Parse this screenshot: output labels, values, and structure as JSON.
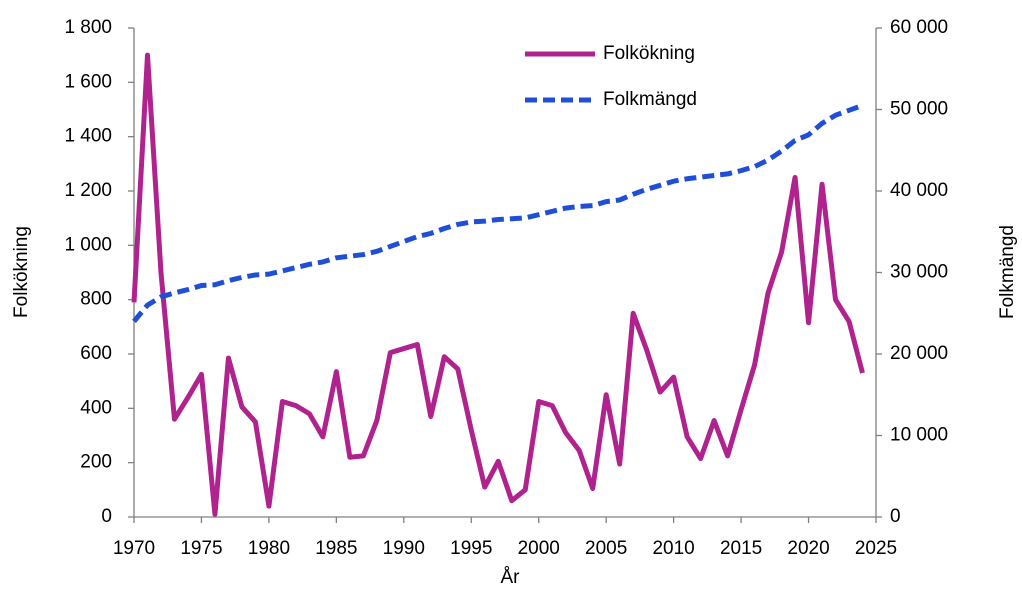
{
  "chart_data": {
    "type": "line",
    "x_label": "År",
    "y_label": "Folkökning",
    "y2_label": "Folkmängd",
    "x": [
      1970,
      1971,
      1972,
      1973,
      1974,
      1975,
      1976,
      1977,
      1978,
      1979,
      1980,
      1981,
      1982,
      1983,
      1984,
      1985,
      1986,
      1987,
      1988,
      1989,
      1990,
      1991,
      1992,
      1993,
      1994,
      1995,
      1996,
      1997,
      1998,
      1999,
      2000,
      2001,
      2002,
      2003,
      2004,
      2005,
      2006,
      2007,
      2008,
      2009,
      2010,
      2011,
      2012,
      2013,
      2014,
      2015,
      2016,
      2017,
      2018,
      2019,
      2020,
      2021,
      2022,
      2023,
      2024
    ],
    "series": [
      {
        "name": "Folkökning",
        "color": "#b0238f",
        "dash": "solid",
        "axis": "y",
        "values": [
          790,
          1700,
          900,
          360,
          440,
          525,
          10,
          585,
          405,
          350,
          40,
          425,
          410,
          380,
          295,
          535,
          220,
          225,
          355,
          605,
          620,
          635,
          370,
          590,
          545,
          320,
          110,
          205,
          60,
          100,
          425,
          410,
          310,
          245,
          105,
          450,
          195,
          750,
          615,
          460,
          515,
          295,
          215,
          355,
          225,
          395,
          560,
          825,
          975,
          1250,
          715,
          1225,
          800,
          720,
          530
        ]
      },
      {
        "name": "Folkmängd",
        "color": "#1f4fd6",
        "dash": "dashed",
        "axis": "y2",
        "values": [
          24000,
          26000,
          27000,
          27500,
          27900,
          28400,
          28500,
          29000,
          29400,
          29700,
          29800,
          30200,
          30600,
          31000,
          31300,
          31800,
          32000,
          32200,
          32600,
          33200,
          33800,
          34400,
          34800,
          35400,
          35900,
          36200,
          36300,
          36500,
          36600,
          36700,
          37100,
          37500,
          37900,
          38100,
          38200,
          38700,
          38900,
          39600,
          40200,
          40700,
          41200,
          41500,
          41700,
          41900,
          42100,
          42500,
          43000,
          43800,
          44900,
          46200,
          46900,
          48300,
          49300,
          49900,
          50500
        ]
      }
    ],
    "xlim": [
      1970,
      2025
    ],
    "xticks": [
      1970,
      1975,
      1980,
      1985,
      1990,
      1995,
      2000,
      2005,
      2010,
      2015,
      2020,
      2025
    ],
    "ylim": [
      0,
      1800
    ],
    "yticks": [
      0,
      200,
      400,
      600,
      800,
      {
        "value": 1000,
        "label": "1 000"
      },
      {
        "value": 1200,
        "label": "1 200"
      },
      {
        "value": 1400,
        "label": "1 400"
      },
      {
        "value": 1600,
        "label": "1 600"
      },
      {
        "value": 1800,
        "label": "1 800"
      }
    ],
    "y2lim": [
      0,
      60000
    ],
    "y2ticks": [
      0,
      {
        "value": 10000,
        "label": "10 000"
      },
      {
        "value": 20000,
        "label": "20 000"
      },
      {
        "value": 30000,
        "label": "30 000"
      },
      {
        "value": 40000,
        "label": "40 000"
      },
      {
        "value": 50000,
        "label": "50 000"
      },
      {
        "value": 60000,
        "label": "60 000"
      }
    ],
    "grid": false,
    "legend": "upper center"
  }
}
